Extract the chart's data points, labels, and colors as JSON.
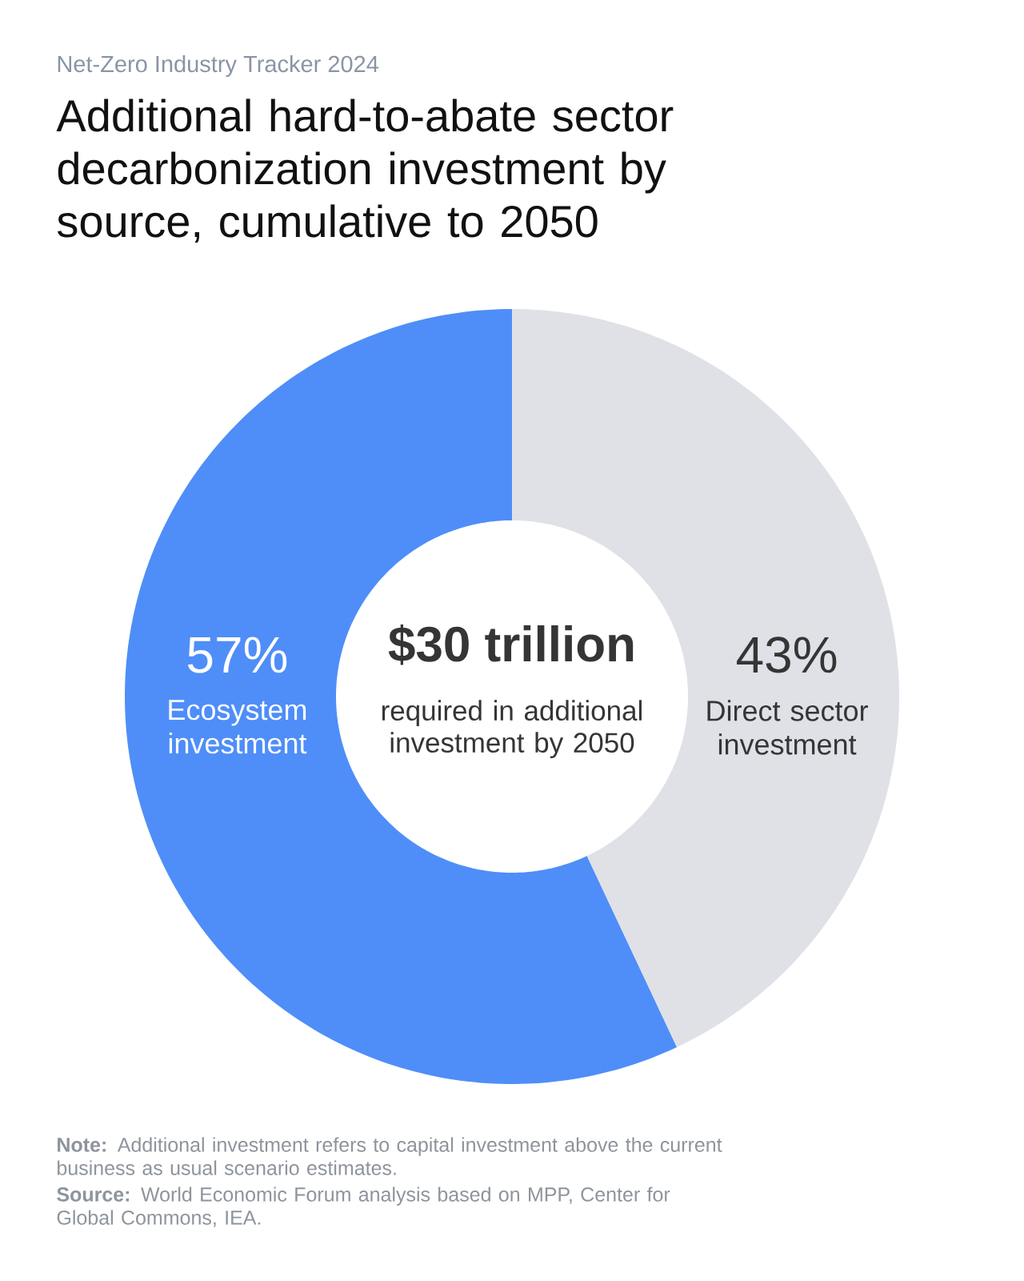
{
  "chart_data": {
    "type": "donut",
    "subtitle": "Net-Zero Industry Tracker 2024",
    "title": "Additional hard-to-abate sector decarbonization investment by source, cumulative to 2050",
    "categories": [
      "Ecosystem investment",
      "Direct sector investment"
    ],
    "values": [
      57,
      43
    ],
    "colors": [
      "#4f8ef8",
      "#dfe1e7"
    ],
    "value_labels": [
      "57%",
      "43%"
    ],
    "annotations": [
      "$30 trillion",
      "required in additional investment by 2050",
      "**Note:** Additional investment refers to capital investment above the current business as usual scenario estimates.",
      "**Source:** World Economic Forum analysis based on MPP, Center for Global Commons, IEA."
    ]
  }
}
